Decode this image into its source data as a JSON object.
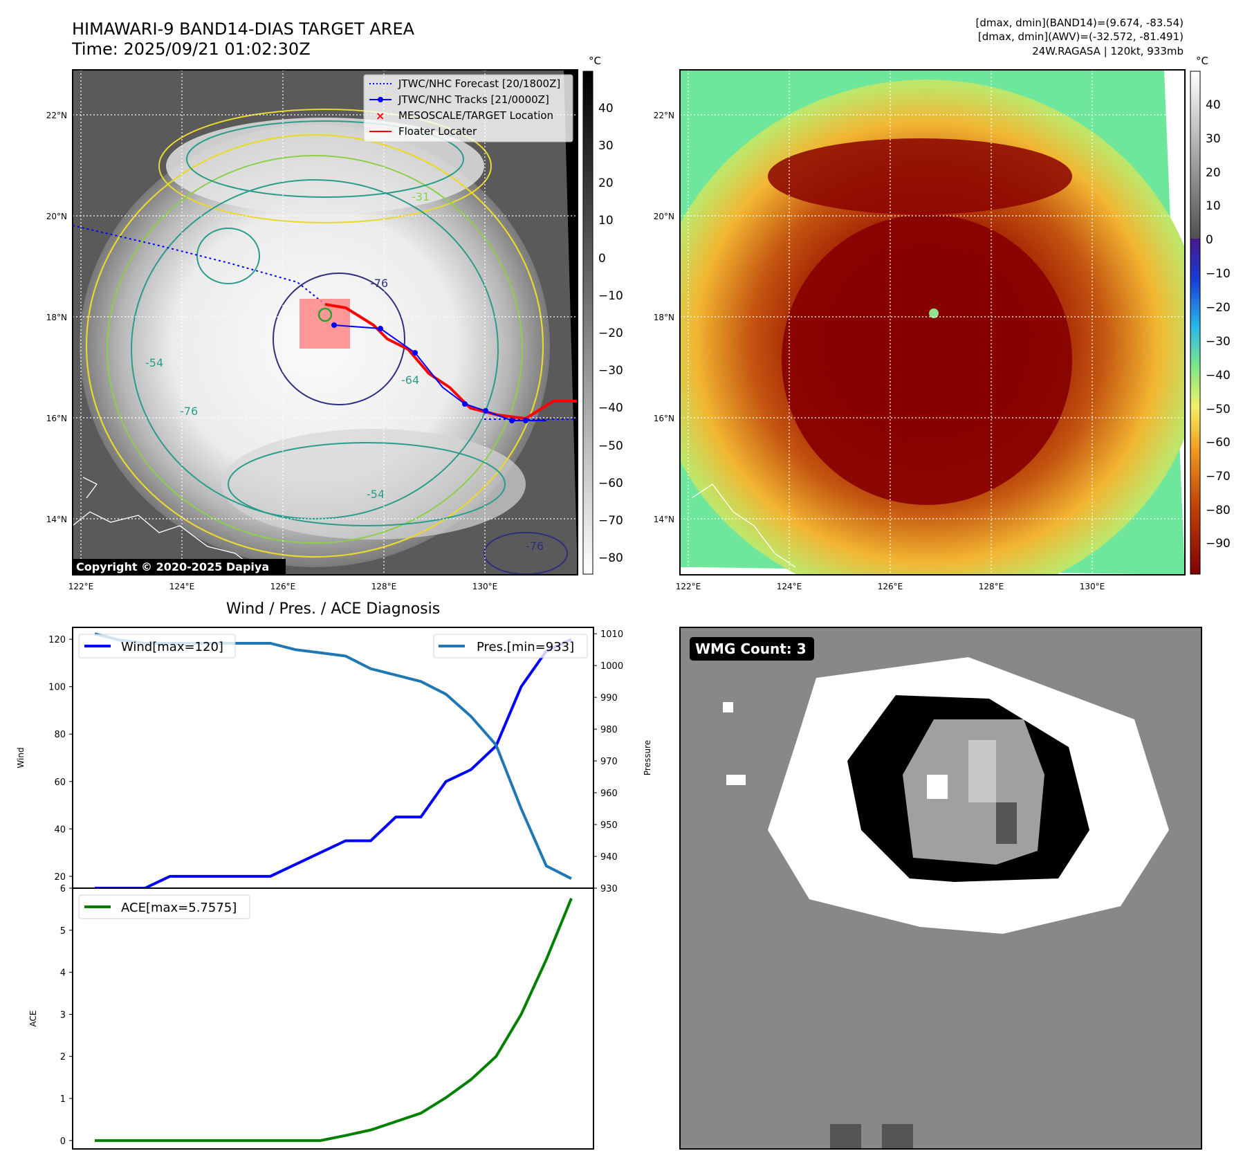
{
  "header": {
    "title_line1": "HIMAWARI-9 BAND14-DIAS TARGET AREA",
    "title_line2": "Time: 2025/09/21 01:02:30Z",
    "info_line1": "[dmax, dmin](BAND14)=(9.674, -83.54)",
    "info_line2": "[dmax, dmin](AWV)=(-32.572, -81.491)",
    "info_line3": "24W.RAGASA | 120kt, 933mb"
  },
  "ir_panel": {
    "copyright": "Copyright © 2020-2025 Dapiya",
    "lat_labels": [
      "22°N",
      "20°N",
      "18°N",
      "16°N",
      "14°N"
    ],
    "lon_labels": [
      "122°E",
      "124°E",
      "126°E",
      "128°E",
      "130°E"
    ],
    "colorbar_unit": "°C",
    "colorbar_ticks": [
      "40",
      "30",
      "20",
      "10",
      "0",
      "−10",
      "−20",
      "−30",
      "−40",
      "−50",
      "−60",
      "−70",
      "−80"
    ],
    "contour_labels": [
      "-76",
      "-64",
      "-54",
      "-31",
      "-54",
      "-76",
      "-76"
    ],
    "legend": [
      {
        "label": "JTWC/NHC Forecast [20/1800Z]",
        "color": "#0000ff",
        "style": "dotted"
      },
      {
        "label": "JTWC/NHC Tracks [21/0000Z]",
        "color": "#0000ff",
        "style": "line-marker"
      },
      {
        "label": "MESOSCALE/TARGET Location",
        "color": "#ff0000",
        "style": "x"
      },
      {
        "label": "Floater Locater",
        "color": "#ff0000",
        "style": "line"
      }
    ]
  },
  "awv_panel": {
    "lat_labels": [
      "22°N",
      "20°N",
      "18°N",
      "16°N",
      "14°N"
    ],
    "lon_labels": [
      "122°E",
      "124°E",
      "126°E",
      "128°E",
      "130°E"
    ],
    "colorbar_unit": "°C",
    "colorbar_ticks": [
      "40",
      "30",
      "20",
      "10",
      "0",
      "−10",
      "−20",
      "−30",
      "−40",
      "−50",
      "−60",
      "−70",
      "−80",
      "−90"
    ]
  },
  "wmg_panel": {
    "badge": "WMG Count: 3"
  },
  "chart_data": [
    {
      "type": "line",
      "title": "Wind / Pres. / ACE Diagnosis",
      "ylabel": "Wind",
      "ylabel_right": "Pressure",
      "ylim": [
        15,
        125
      ],
      "ylim_right": [
        930,
        1012
      ],
      "yticks": [
        20,
        40,
        60,
        80,
        100,
        120
      ],
      "yticks_right": [
        930,
        940,
        950,
        960,
        970,
        980,
        990,
        1000,
        1010
      ],
      "x": [
        0,
        1,
        2,
        3,
        4,
        5,
        6,
        7,
        8,
        9,
        10,
        11,
        12,
        13,
        14,
        15,
        16,
        17,
        18,
        19
      ],
      "series": [
        {
          "name": "Wind[max=120]",
          "color": "#0000ff",
          "axis": "left",
          "values": [
            15,
            15,
            15,
            20,
            20,
            20,
            20,
            20,
            25,
            30,
            35,
            35,
            45,
            45,
            60,
            65,
            75,
            100,
            115,
            120
          ]
        },
        {
          "name": "Pres.[min=933]",
          "color": "#1f77b4",
          "axis": "right",
          "values": [
            1010,
            1008,
            1007,
            1007,
            1007,
            1007,
            1007,
            1007,
            1005,
            1004,
            1003,
            999,
            997,
            995,
            991,
            984,
            975,
            955,
            937,
            933
          ]
        }
      ]
    },
    {
      "type": "line",
      "ylabel": "ACE",
      "ylim": [
        -0.2,
        6
      ],
      "yticks": [
        0,
        1,
        2,
        3,
        4,
        5,
        6
      ],
      "x": [
        0,
        1,
        2,
        3,
        4,
        5,
        6,
        7,
        8,
        9,
        10,
        11,
        12,
        13,
        14,
        15,
        16,
        17,
        18,
        19
      ],
      "series": [
        {
          "name": "ACE[max=5.7575]",
          "color": "#008000",
          "values": [
            0,
            0,
            0,
            0,
            0,
            0,
            0,
            0,
            0,
            0,
            0.12,
            0.25,
            0.45,
            0.65,
            1.02,
            1.45,
            2.0,
            3.0,
            4.3,
            5.7575
          ]
        }
      ]
    }
  ]
}
